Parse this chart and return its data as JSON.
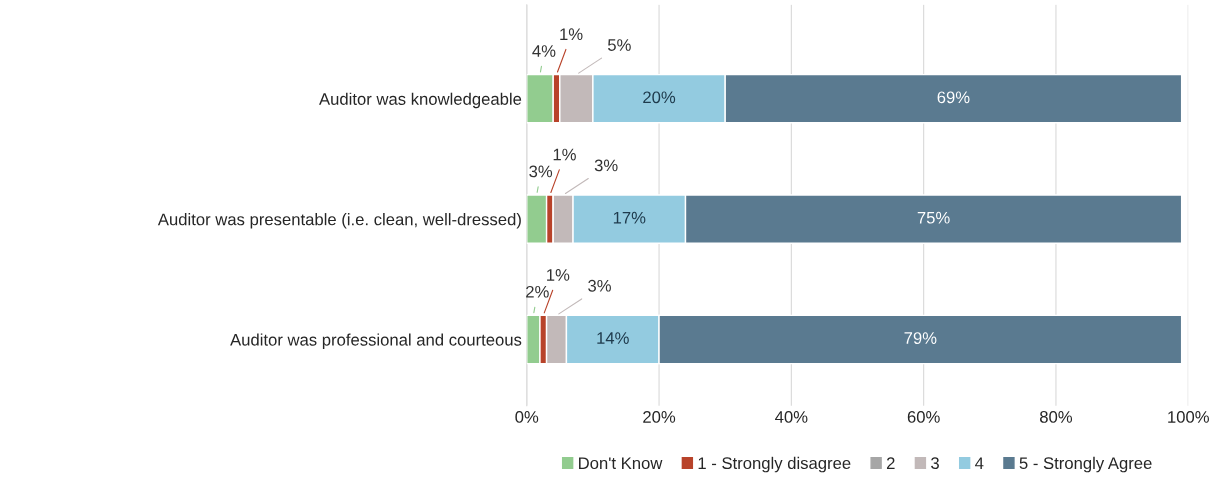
{
  "chart_data": {
    "type": "bar",
    "orientation": "horizontal",
    "stacked": true,
    "categories": [
      "Auditor was knowledgeable",
      "Auditor was presentable (i.e. clean, well-dressed)",
      "Auditor was professional and courteous"
    ],
    "series": [
      {
        "name": "Don't Know",
        "color": "#92cc8f",
        "values": [
          4,
          3,
          2
        ],
        "value_labels": [
          "4%",
          "3%",
          "2%"
        ]
      },
      {
        "name": "1 - Strongly disagree",
        "color": "#b8432a",
        "values": [
          1,
          1,
          1
        ],
        "value_labels": [
          "1%",
          "1%",
          "1%"
        ]
      },
      {
        "name": "2",
        "color": "#a6a6a6",
        "values": [
          0,
          0,
          0
        ],
        "value_labels": [
          null,
          null,
          null
        ]
      },
      {
        "name": "3",
        "color": "#c2b9b9",
        "values": [
          5,
          3,
          3
        ],
        "value_labels": [
          "5%",
          "3%",
          "3%"
        ]
      },
      {
        "name": "4",
        "color": "#93cbe0",
        "values": [
          20,
          17,
          14
        ],
        "value_labels": [
          "20%",
          "17%",
          "14%"
        ]
      },
      {
        "name": "5 - Strongly Agree",
        "color": "#5a7a90",
        "values": [
          69,
          75,
          79
        ],
        "value_labels": [
          "69%",
          "75%",
          "79%"
        ]
      }
    ],
    "xlim": [
      0,
      100
    ],
    "xticks": [
      {
        "value": 0,
        "label": "0%"
      },
      {
        "value": 20,
        "label": "20%"
      },
      {
        "value": 40,
        "label": "40%"
      },
      {
        "value": 60,
        "label": "60%"
      },
      {
        "value": 80,
        "label": "80%"
      },
      {
        "value": 100,
        "label": "100%"
      }
    ],
    "grid": "x",
    "legend": "bottom"
  }
}
